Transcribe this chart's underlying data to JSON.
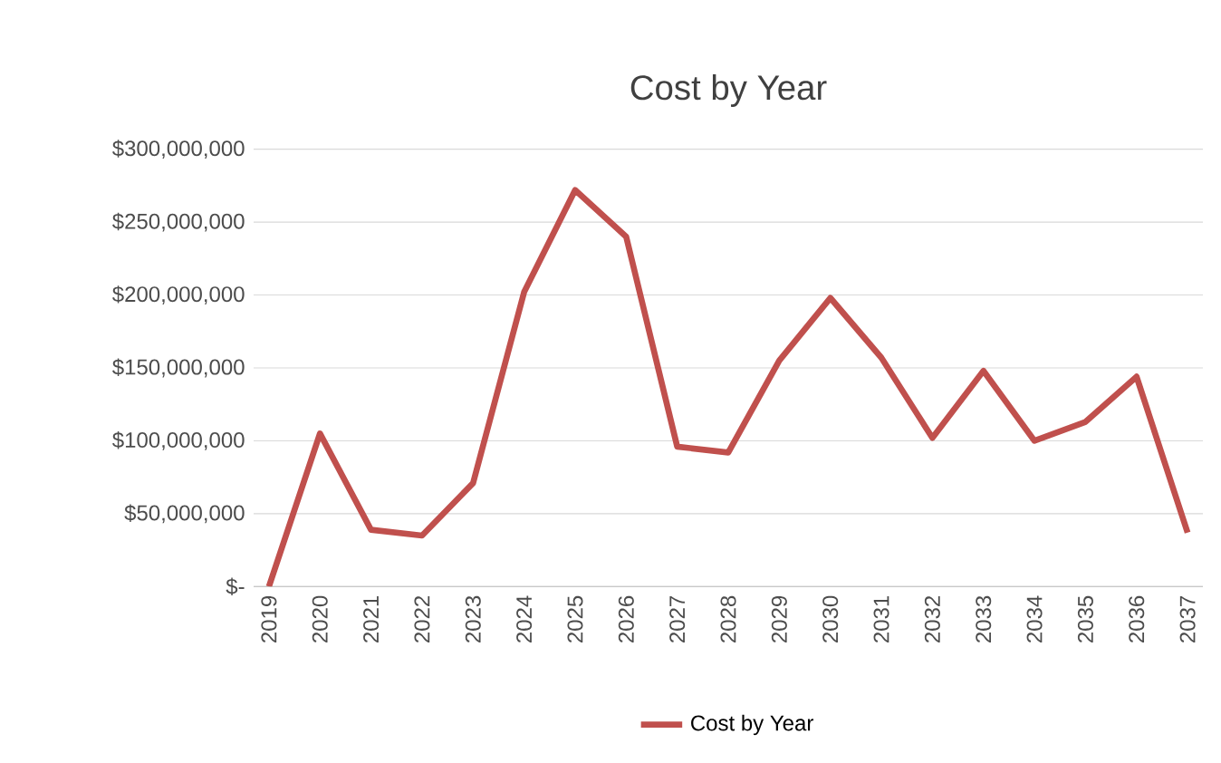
{
  "chart_data": {
    "type": "line",
    "title": "Cost by Year",
    "categories": [
      "2019",
      "2020",
      "2021",
      "2022",
      "2023",
      "2024",
      "2025",
      "2026",
      "2027",
      "2028",
      "2029",
      "2030",
      "2031",
      "2032",
      "2033",
      "2034",
      "2035",
      "2036",
      "2037"
    ],
    "series": [
      {
        "name": "Cost by Year",
        "color": "#c0504d",
        "values": [
          0,
          105000000,
          39000000,
          35000000,
          71000000,
          202000000,
          272000000,
          240000000,
          96000000,
          92000000,
          155000000,
          198000000,
          157000000,
          102000000,
          148000000,
          100000000,
          113000000,
          144000000,
          37000000
        ]
      }
    ],
    "ylim": [
      0,
      300000000
    ],
    "yticks": [
      {
        "value": 0,
        "label": "$-"
      },
      {
        "value": 50000000,
        "label": "$50,000,000"
      },
      {
        "value": 100000000,
        "label": "$100,000,000"
      },
      {
        "value": 150000000,
        "label": "$150,000,000"
      },
      {
        "value": 200000000,
        "label": "$200,000,000"
      },
      {
        "value": 250000000,
        "label": "$250,000,000"
      },
      {
        "value": 300000000,
        "label": "$300,000,000"
      }
    ],
    "grid": "y",
    "legend": "bottom",
    "marker": "none",
    "line_style": "solid"
  }
}
